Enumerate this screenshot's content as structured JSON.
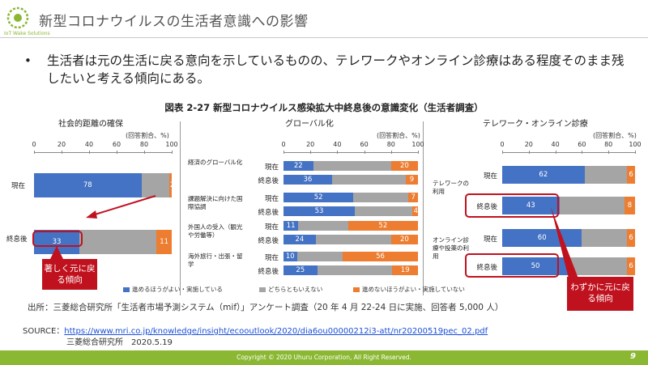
{
  "header": {
    "title": "新型コロナウイルスの生活者意識への影響",
    "logo_text": "IoT Wake Solutions"
  },
  "body": {
    "bullet": "•",
    "text": "生活者は元の生活に戻る意向を示しているものの、テレワークやオンライン診療はある程度そのまま残したいと考える傾向にある。"
  },
  "figure": {
    "title": "図表 2-27 新型コロナウイルス感染拡大中終息後の意識変化（生活者調査）",
    "unit": "(回答割合、%)",
    "axis_ticks": [
      "0",
      "20",
      "40",
      "60",
      "80",
      "100"
    ],
    "legend": {
      "blue": "進めるほうがよい・実施している",
      "gray": "どちらともいえない",
      "orange": "進めないほうがよい・実施していない"
    },
    "colors": {
      "blue": "#4472c4",
      "gray": "#a5a5a5",
      "orange": "#ed7d31",
      "callout": "#c0121e"
    },
    "callout_left": "著しく元に戻る傾向",
    "callout_right": "わずかに元に戻る傾向"
  },
  "chart_data": [
    {
      "type": "bar",
      "title": "社会的距離の確保",
      "orientation": "horizontal-stacked",
      "xlim": [
        0,
        100
      ],
      "categories": [
        "現在",
        "終息後"
      ],
      "series": [
        {
          "name": "進めるほうがよい・実施している",
          "values": [
            78,
            33
          ]
        },
        {
          "name": "どちらともいえない",
          "values": [
            20,
            56
          ]
        },
        {
          "name": "進めないほうがよい・実施していない",
          "values": [
            2,
            11
          ]
        }
      ]
    },
    {
      "type": "bar",
      "title": "グローバル化",
      "orientation": "horizontal-stacked",
      "xlim": [
        0,
        100
      ],
      "groups": [
        "経済のグローバル化",
        "課題解決に向けた国際協調",
        "外国人の受入（観光や労働等）",
        "海外旅行・出張・留学"
      ],
      "categories": [
        "現在",
        "終息後",
        "現在",
        "終息後",
        "現在",
        "終息後",
        "現在",
        "終息後"
      ],
      "series": [
        {
          "name": "進めるほうがよい・実施している",
          "values": [
            22,
            36,
            52,
            53,
            11,
            24,
            10,
            25
          ]
        },
        {
          "name": "どちらともいえない",
          "values": [
            58,
            55,
            41,
            43,
            37,
            56,
            34,
            56
          ]
        },
        {
          "name": "進めないほうがよい・実施していない",
          "values": [
            20,
            9,
            7,
            4,
            52,
            20,
            56,
            19
          ]
        }
      ]
    },
    {
      "type": "bar",
      "title": "テレワーク・オンライン診療",
      "orientation": "horizontal-stacked",
      "xlim": [
        0,
        100
      ],
      "groups": [
        "テレワークの利用",
        "オンライン診療や投薬の利用"
      ],
      "categories": [
        "現在",
        "終息後",
        "現在",
        "終息後"
      ],
      "series": [
        {
          "name": "進めるほうがよい・実施している",
          "values": [
            62,
            43,
            60,
            50
          ]
        },
        {
          "name": "どちらともいえない",
          "values": [
            32,
            49,
            34,
            44
          ]
        },
        {
          "name": "進めないほうがよい・実施していない",
          "values": [
            6,
            8,
            6,
            6
          ]
        }
      ]
    }
  ],
  "source": {
    "note": "出所：三菱総合研究所「生活者市場予測システム（mif）」アンケート調査（20 年 4 月 22-24 日に実施、回答者 5,000 人）",
    "label": "SOURCE：",
    "url": "https://www.mri.co.jp/knowledge/insight/ecooutlook/2020/dia6ou00000212i3-att/nr20200519pec_02.pdf",
    "org": "三菱総合研究所　2020.5.19"
  },
  "footer": {
    "copyright": "Copyright © 2020 Uhuru Corporation, All Right Reserved.",
    "page": "9"
  }
}
